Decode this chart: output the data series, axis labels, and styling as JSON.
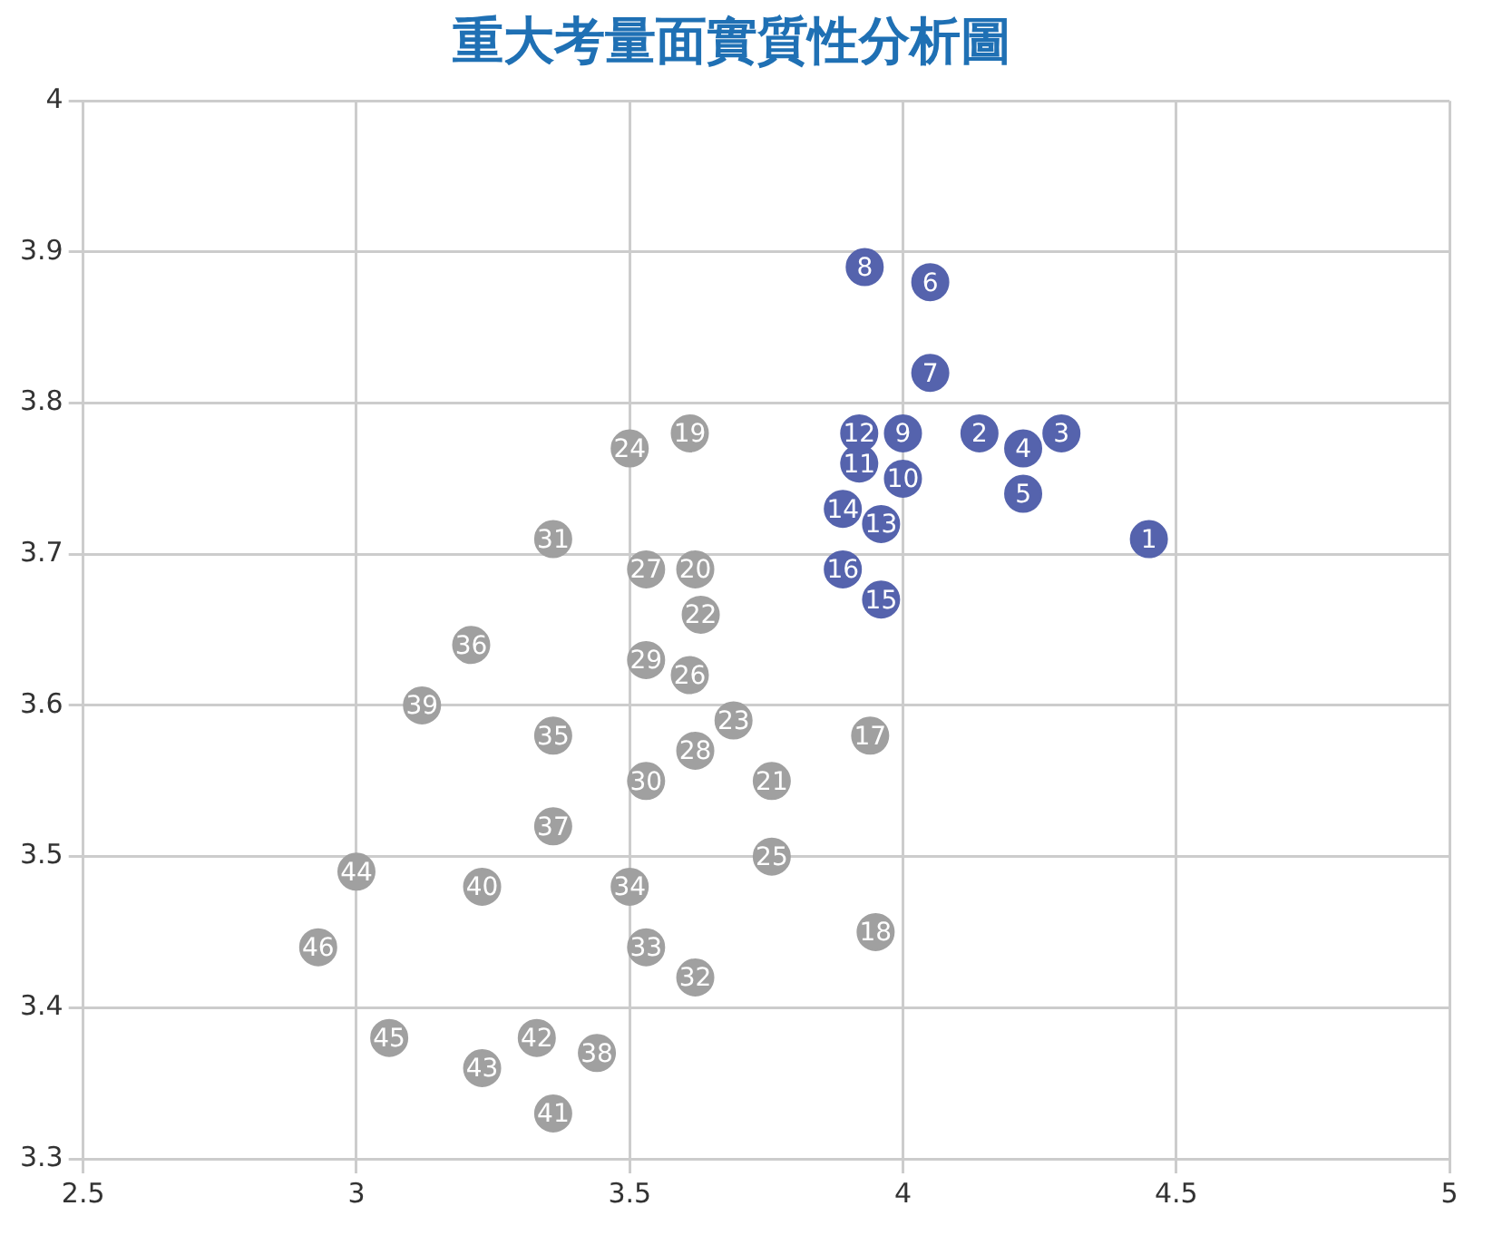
{
  "chart_data": {
    "type": "scatter",
    "title": "重大考量面實質性分析圖",
    "series": [
      {
        "color": "#5563ad",
        "x": [
          4.45,
          4.14,
          4.29,
          4.22,
          4.22,
          4.05,
          4.05,
          3.93,
          4.0,
          4.0,
          3.92,
          3.92,
          3.96,
          3.89,
          3.96,
          3.89
        ],
        "values": [
          3.71,
          3.78,
          3.78,
          3.77,
          3.74,
          3.88,
          3.82,
          3.89,
          3.78,
          3.75,
          3.76,
          3.78,
          3.72,
          3.73,
          3.67,
          3.69
        ]
      },
      {
        "color": "#a0a0a0",
        "x": [
          3.94,
          3.95,
          3.61,
          3.62,
          3.76,
          3.63,
          3.69,
          3.5,
          3.76,
          3.61,
          3.53,
          3.62,
          3.53,
          3.53,
          3.36,
          3.62,
          3.53,
          3.5,
          3.36,
          3.21,
          3.36,
          3.44,
          3.12,
          3.23,
          3.36,
          3.33,
          3.23,
          3.0,
          3.06,
          2.93
        ],
        "values": [
          3.58,
          3.45,
          3.78,
          3.69,
          3.55,
          3.66,
          3.59,
          3.77,
          3.5,
          3.62,
          3.69,
          3.57,
          3.63,
          3.55,
          3.71,
          3.42,
          3.44,
          3.48,
          3.58,
          3.64,
          3.52,
          3.37,
          3.6,
          3.48,
          3.33,
          3.38,
          3.36,
          3.49,
          3.38,
          3.44
        ]
      }
    ],
    "annotations": [
      {
        "text": "1",
        "x": 4.45,
        "y": 3.71
      },
      {
        "text": "2",
        "x": 4.14,
        "y": 3.78
      },
      {
        "text": "3",
        "x": 4.29,
        "y": 3.78
      },
      {
        "text": "4",
        "x": 4.22,
        "y": 3.77
      },
      {
        "text": "5",
        "x": 4.22,
        "y": 3.74
      },
      {
        "text": "6",
        "x": 4.05,
        "y": 3.88
      },
      {
        "text": "7",
        "x": 4.05,
        "y": 3.82
      },
      {
        "text": "8",
        "x": 3.93,
        "y": 3.89
      },
      {
        "text": "9",
        "x": 4.0,
        "y": 3.78
      },
      {
        "text": "10",
        "x": 4.0,
        "y": 3.75
      },
      {
        "text": "11",
        "x": 3.92,
        "y": 3.76
      },
      {
        "text": "12",
        "x": 3.92,
        "y": 3.78
      },
      {
        "text": "13",
        "x": 3.96,
        "y": 3.72
      },
      {
        "text": "14",
        "x": 3.89,
        "y": 3.73
      },
      {
        "text": "15",
        "x": 3.96,
        "y": 3.67
      },
      {
        "text": "16",
        "x": 3.89,
        "y": 3.69
      },
      {
        "text": "17",
        "x": 3.94,
        "y": 3.58
      },
      {
        "text": "18",
        "x": 3.95,
        "y": 3.45
      },
      {
        "text": "19",
        "x": 3.61,
        "y": 3.78
      },
      {
        "text": "20",
        "x": 3.62,
        "y": 3.69
      },
      {
        "text": "21",
        "x": 3.76,
        "y": 3.55
      },
      {
        "text": "22",
        "x": 3.63,
        "y": 3.66
      },
      {
        "text": "23",
        "x": 3.69,
        "y": 3.59
      },
      {
        "text": "24",
        "x": 3.5,
        "y": 3.77
      },
      {
        "text": "25",
        "x": 3.76,
        "y": 3.5
      },
      {
        "text": "26",
        "x": 3.61,
        "y": 3.62
      },
      {
        "text": "27",
        "x": 3.53,
        "y": 3.69
      },
      {
        "text": "28",
        "x": 3.62,
        "y": 3.57
      },
      {
        "text": "29",
        "x": 3.53,
        "y": 3.63
      },
      {
        "text": "30",
        "x": 3.53,
        "y": 3.55
      },
      {
        "text": "31",
        "x": 3.36,
        "y": 3.71
      },
      {
        "text": "32",
        "x": 3.62,
        "y": 3.42
      },
      {
        "text": "33",
        "x": 3.53,
        "y": 3.44
      },
      {
        "text": "34",
        "x": 3.5,
        "y": 3.48
      },
      {
        "text": "35",
        "x": 3.36,
        "y": 3.58
      },
      {
        "text": "36",
        "x": 3.21,
        "y": 3.64
      },
      {
        "text": "37",
        "x": 3.36,
        "y": 3.52
      },
      {
        "text": "38",
        "x": 3.44,
        "y": 3.37
      },
      {
        "text": "39",
        "x": 3.12,
        "y": 3.6
      },
      {
        "text": "40",
        "x": 3.23,
        "y": 3.48
      },
      {
        "text": "41",
        "x": 3.36,
        "y": 3.33
      },
      {
        "text": "42",
        "x": 3.33,
        "y": 3.38
      },
      {
        "text": "43",
        "x": 3.23,
        "y": 3.36
      },
      {
        "text": "44",
        "x": 3.0,
        "y": 3.49
      },
      {
        "text": "45",
        "x": 3.06,
        "y": 3.38
      },
      {
        "text": "46",
        "x": 2.93,
        "y": 3.44
      }
    ],
    "xlim": [
      2.5,
      5
    ],
    "xticks": [
      2.5,
      3,
      3.5,
      4,
      4.5,
      5
    ],
    "ylim": [
      3.3,
      4
    ],
    "yticks": [
      3.3,
      3.4,
      3.5,
      3.6,
      3.7,
      3.8,
      3.9,
      4
    ],
    "grid": true,
    "legend": false,
    "marker": "circle"
  }
}
